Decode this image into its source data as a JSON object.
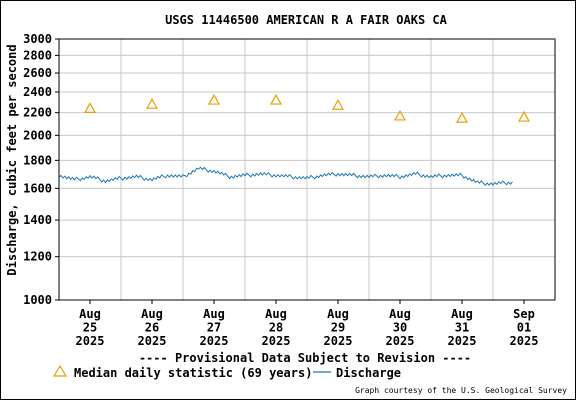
{
  "chart_data": {
    "type": "line",
    "title": "USGS 11446500 AMERICAN R A FAIR OAKS CA",
    "ylabel": "Discharge, cubic feet per second",
    "xlabel": "",
    "y_scale": "log",
    "ylim": [
      1000,
      3000
    ],
    "y_ticks": [
      1000,
      1200,
      1400,
      1600,
      1800,
      2000,
      2200,
      2400,
      2600,
      2800,
      3000
    ],
    "y_tick_labels": [
      "1000",
      "1200",
      "1400",
      "1600",
      "1800",
      "2000",
      "2200",
      "2400",
      "2600",
      "2800",
      "3000"
    ],
    "x_ticks": [
      {
        "date": "2025-08-25",
        "line1": "Aug",
        "line2": "25",
        "line3": "2025"
      },
      {
        "date": "2025-08-26",
        "line1": "Aug",
        "line2": "26",
        "line3": "2025"
      },
      {
        "date": "2025-08-27",
        "line1": "Aug",
        "line2": "27",
        "line3": "2025"
      },
      {
        "date": "2025-08-28",
        "line1": "Aug",
        "line2": "28",
        "line3": "2025"
      },
      {
        "date": "2025-08-29",
        "line1": "Aug",
        "line2": "29",
        "line3": "2025"
      },
      {
        "date": "2025-08-30",
        "line1": "Aug",
        "line2": "30",
        "line3": "2025"
      },
      {
        "date": "2025-08-31",
        "line1": "Aug",
        "line2": "31",
        "line3": "2025"
      },
      {
        "date": "2025-09-01",
        "line1": "Sep",
        "line2": "01",
        "line3": "2025"
      }
    ],
    "xlim": [
      "2025-08-24T12:00",
      "2025-09-01T12:00"
    ],
    "grid": true,
    "series": [
      {
        "name": "Median daily statistic (69 years)",
        "kind": "marker-triangle",
        "color": "#e8a000",
        "points": [
          {
            "x": "2025-08-25T00:00",
            "y": 2240
          },
          {
            "x": "2025-08-26T00:00",
            "y": 2280
          },
          {
            "x": "2025-08-27T00:00",
            "y": 2320
          },
          {
            "x": "2025-08-28T00:00",
            "y": 2320
          },
          {
            "x": "2025-08-29T00:00",
            "y": 2270
          },
          {
            "x": "2025-08-30T00:00",
            "y": 2170
          },
          {
            "x": "2025-08-31T00:00",
            "y": 2150
          },
          {
            "x": "2025-09-01T00:00",
            "y": 2160
          }
        ]
      },
      {
        "name": "Discharge",
        "kind": "line",
        "color": "#1f77b4",
        "points": [
          {
            "x": "2025-08-24T12:00",
            "y": 1690
          },
          {
            "x": "2025-08-24T18:00",
            "y": 1660
          },
          {
            "x": "2025-08-25T00:00",
            "y": 1680
          },
          {
            "x": "2025-08-25T06:00",
            "y": 1650
          },
          {
            "x": "2025-08-25T12:00",
            "y": 1670
          },
          {
            "x": "2025-08-25T18:00",
            "y": 1680
          },
          {
            "x": "2025-08-26T00:00",
            "y": 1660
          },
          {
            "x": "2025-08-26T06:00",
            "y": 1690
          },
          {
            "x": "2025-08-26T12:00",
            "y": 1680
          },
          {
            "x": "2025-08-26T18:00",
            "y": 1740
          },
          {
            "x": "2025-08-27T00:00",
            "y": 1720
          },
          {
            "x": "2025-08-27T06:00",
            "y": 1680
          },
          {
            "x": "2025-08-27T12:00",
            "y": 1690
          },
          {
            "x": "2025-08-27T18:00",
            "y": 1700
          },
          {
            "x": "2025-08-28T00:00",
            "y": 1690
          },
          {
            "x": "2025-08-28T06:00",
            "y": 1680
          },
          {
            "x": "2025-08-28T12:00",
            "y": 1670
          },
          {
            "x": "2025-08-28T18:00",
            "y": 1690
          },
          {
            "x": "2025-08-29T00:00",
            "y": 1700
          },
          {
            "x": "2025-08-29T06:00",
            "y": 1690
          },
          {
            "x": "2025-08-29T12:00",
            "y": 1680
          },
          {
            "x": "2025-08-29T18:00",
            "y": 1690
          },
          {
            "x": "2025-08-30T00:00",
            "y": 1680
          },
          {
            "x": "2025-08-30T06:00",
            "y": 1700
          },
          {
            "x": "2025-08-30T12:00",
            "y": 1680
          },
          {
            "x": "2025-08-30T18:00",
            "y": 1690
          },
          {
            "x": "2025-08-31T00:00",
            "y": 1690
          },
          {
            "x": "2025-08-31T06:00",
            "y": 1640
          },
          {
            "x": "2025-08-31T12:00",
            "y": 1630
          },
          {
            "x": "2025-08-31T18:00",
            "y": 1640
          }
        ]
      }
    ],
    "legend": {
      "placement": "bottom",
      "provisional_note": "---- Provisional Data Subject to Revision ----",
      "credit": "Graph courtesy of the U.S. Geological Survey"
    }
  },
  "colors": {
    "grid": "#c8c8c8",
    "axis": "#000000",
    "median": "#e8a000",
    "discharge": "#1f77b4",
    "provisional": "#e00000"
  }
}
